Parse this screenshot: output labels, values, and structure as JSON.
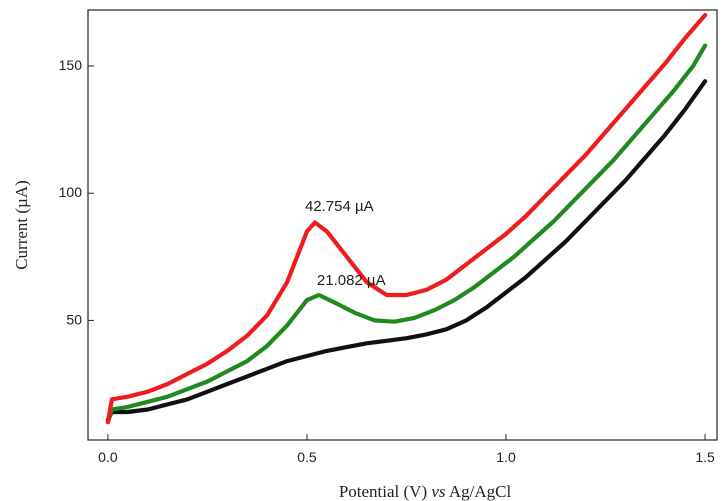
{
  "chart_data": {
    "type": "line",
    "title": "",
    "xlabel": "Potential (V) vs Ag/AgCl",
    "xlabel_parts": [
      "Potential (V) ",
      "vs",
      " Ag/AgCl"
    ],
    "ylabel": "Current (µA)",
    "xlim": [
      -0.05,
      1.53
    ],
    "ylim": [
      3,
      172
    ],
    "xticks": [
      0.0,
      0.5,
      1.0,
      1.5
    ],
    "xtick_labels": [
      "0.0",
      "0.5",
      "1.0",
      "1.5"
    ],
    "yticks": [
      50,
      100,
      150
    ],
    "ytick_labels": [
      "50",
      "100",
      "150"
    ],
    "grid": false,
    "legend": "none",
    "series": [
      {
        "color": "#ee1c1c",
        "points": [
          [
            0.0,
            10
          ],
          [
            0.01,
            19
          ],
          [
            0.05,
            20
          ],
          [
            0.1,
            22
          ],
          [
            0.15,
            25
          ],
          [
            0.2,
            29
          ],
          [
            0.25,
            33
          ],
          [
            0.3,
            38
          ],
          [
            0.35,
            44
          ],
          [
            0.4,
            52
          ],
          [
            0.45,
            65
          ],
          [
            0.5,
            85
          ],
          [
            0.52,
            88.5
          ],
          [
            0.55,
            85
          ],
          [
            0.6,
            75
          ],
          [
            0.65,
            65
          ],
          [
            0.7,
            60
          ],
          [
            0.75,
            60
          ],
          [
            0.8,
            62
          ],
          [
            0.85,
            66
          ],
          [
            0.9,
            72
          ],
          [
            0.95,
            78
          ],
          [
            1.0,
            84
          ],
          [
            1.05,
            91
          ],
          [
            1.1,
            99
          ],
          [
            1.15,
            107
          ],
          [
            1.2,
            115
          ],
          [
            1.25,
            124
          ],
          [
            1.3,
            133
          ],
          [
            1.35,
            142
          ],
          [
            1.4,
            151
          ],
          [
            1.45,
            161
          ],
          [
            1.5,
            170
          ]
        ]
      },
      {
        "color": "#1f8a1f",
        "points": [
          [
            0.0,
            10
          ],
          [
            0.01,
            15
          ],
          [
            0.05,
            16
          ],
          [
            0.1,
            18
          ],
          [
            0.15,
            20
          ],
          [
            0.2,
            23
          ],
          [
            0.25,
            26
          ],
          [
            0.3,
            30
          ],
          [
            0.35,
            34
          ],
          [
            0.4,
            40
          ],
          [
            0.45,
            48
          ],
          [
            0.5,
            58
          ],
          [
            0.53,
            60
          ],
          [
            0.57,
            57
          ],
          [
            0.62,
            53
          ],
          [
            0.67,
            50
          ],
          [
            0.72,
            49.5
          ],
          [
            0.77,
            51
          ],
          [
            0.82,
            54
          ],
          [
            0.87,
            58
          ],
          [
            0.92,
            63
          ],
          [
            0.97,
            69
          ],
          [
            1.02,
            75
          ],
          [
            1.07,
            82
          ],
          [
            1.12,
            89
          ],
          [
            1.17,
            97
          ],
          [
            1.22,
            105
          ],
          [
            1.27,
            113
          ],
          [
            1.32,
            122
          ],
          [
            1.37,
            131
          ],
          [
            1.42,
            140
          ],
          [
            1.47,
            150
          ],
          [
            1.5,
            158
          ]
        ]
      },
      {
        "color": "#111111",
        "points": [
          [
            0.0,
            11
          ],
          [
            0.01,
            14
          ],
          [
            0.05,
            14
          ],
          [
            0.1,
            15
          ],
          [
            0.15,
            17
          ],
          [
            0.2,
            19
          ],
          [
            0.25,
            22
          ],
          [
            0.3,
            25
          ],
          [
            0.35,
            28
          ],
          [
            0.4,
            31
          ],
          [
            0.45,
            34
          ],
          [
            0.5,
            36
          ],
          [
            0.55,
            38
          ],
          [
            0.6,
            39.5
          ],
          [
            0.65,
            41
          ],
          [
            0.7,
            42
          ],
          [
            0.75,
            43
          ],
          [
            0.8,
            44.5
          ],
          [
            0.85,
            46.5
          ],
          [
            0.9,
            50
          ],
          [
            0.95,
            55
          ],
          [
            1.0,
            61
          ],
          [
            1.05,
            67
          ],
          [
            1.1,
            74
          ],
          [
            1.15,
            81
          ],
          [
            1.2,
            89
          ],
          [
            1.25,
            97
          ],
          [
            1.3,
            105
          ],
          [
            1.35,
            114
          ],
          [
            1.4,
            123
          ],
          [
            1.45,
            133
          ],
          [
            1.5,
            144
          ]
        ]
      }
    ],
    "annotations": [
      {
        "text": "42.754 µA",
        "x": 0.5,
        "y": 93
      },
      {
        "text": "21.082 µA",
        "x": 0.53,
        "y": 64
      }
    ]
  }
}
